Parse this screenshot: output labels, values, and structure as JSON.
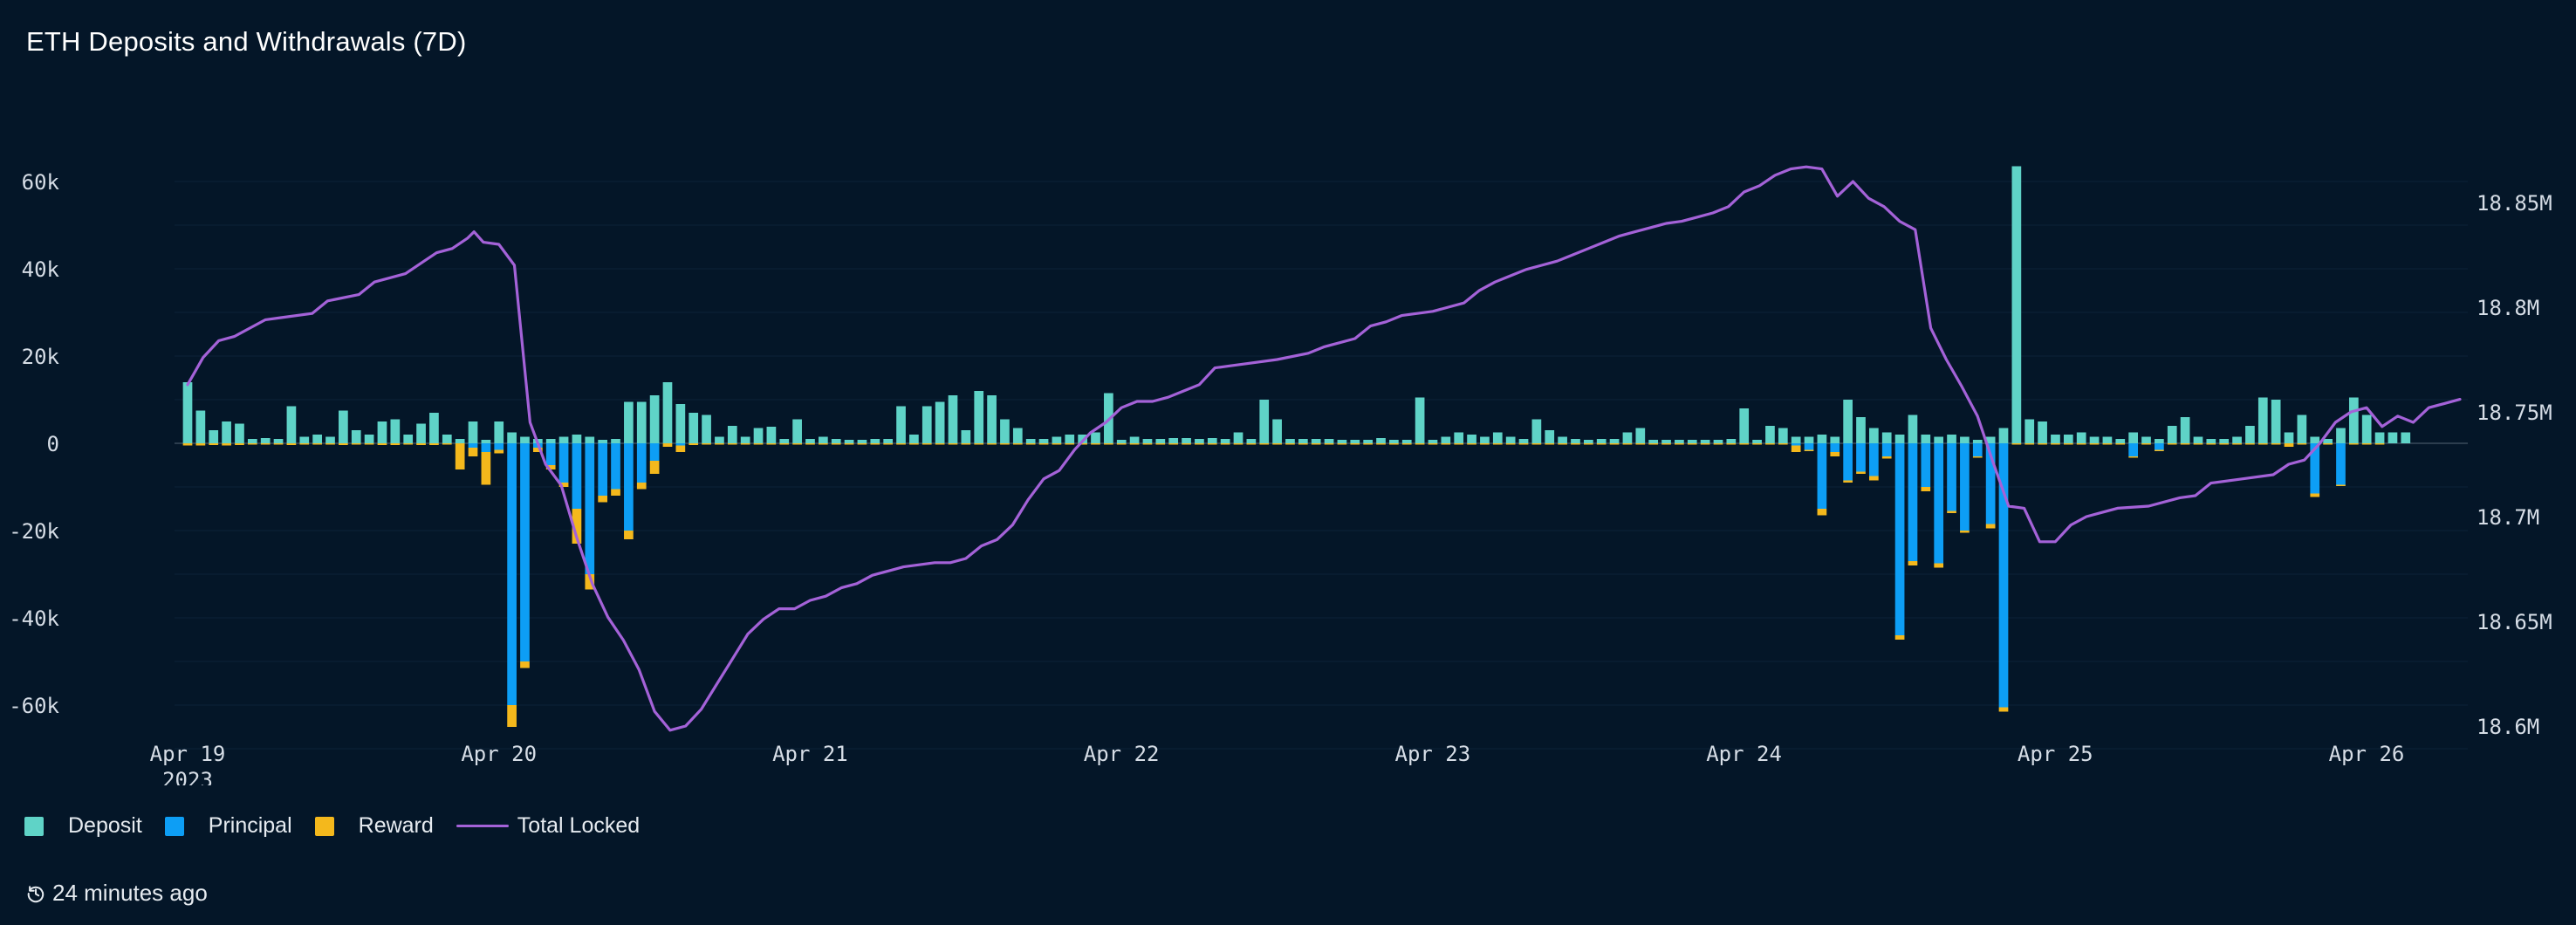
{
  "title": "ETH Deposits and Withdrawals (7D)",
  "updated": "24 minutes ago",
  "legend": {
    "deposit": "Deposit",
    "principal": "Principal",
    "reward": "Reward",
    "total_locked": "Total Locked"
  },
  "colors": {
    "deposit": "#5fd3c7",
    "principal": "#0d9ef5",
    "reward": "#f4b81c",
    "total_locked": "#a462d8",
    "background": "#041628"
  },
  "chart_data": {
    "type": "bar",
    "title": "ETH Deposits and Withdrawals (7D)",
    "x_ticks": [
      {
        "label": "Apr 19",
        "sub": "2023",
        "day": 0
      },
      {
        "label": "Apr 20",
        "sub": "",
        "day": 1
      },
      {
        "label": "Apr 21",
        "sub": "",
        "day": 2
      },
      {
        "label": "Apr 22",
        "sub": "",
        "day": 3
      },
      {
        "label": "Apr 23",
        "sub": "",
        "day": 4
      },
      {
        "label": "Apr 24",
        "sub": "",
        "day": 5
      },
      {
        "label": "Apr 25",
        "sub": "",
        "day": 6
      },
      {
        "label": "Apr 26",
        "sub": "",
        "day": 7
      }
    ],
    "x_range_days": [
      -0.1,
      7.5
    ],
    "bar_start_day": 0,
    "bar_step_days": 0.04167,
    "ylim_left": [
      -72000,
      72000
    ],
    "y_ticks_left": [
      {
        "value": 60000,
        "label": "60k"
      },
      {
        "value": 40000,
        "label": "40k"
      },
      {
        "value": 20000,
        "label": "20k"
      },
      {
        "value": 0,
        "label": "0"
      },
      {
        "value": -20000,
        "label": "-20k"
      },
      {
        "value": -40000,
        "label": "-40k"
      },
      {
        "value": -60000,
        "label": "-60k"
      }
    ],
    "ylim_right": [
      18.585,
      18.885
    ],
    "y_ticks_right": [
      {
        "value": 18.85,
        "label": "18.85M"
      },
      {
        "value": 18.8,
        "label": "18.8M"
      },
      {
        "value": 18.75,
        "label": "18.75M"
      },
      {
        "value": 18.7,
        "label": "18.7M"
      },
      {
        "value": 18.65,
        "label": "18.65M"
      },
      {
        "value": 18.6,
        "label": "18.6M"
      }
    ],
    "series": [
      {
        "name": "Deposit",
        "values": [
          14000,
          7500,
          3000,
          5000,
          4500,
          1000,
          1200,
          1000,
          8500,
          1500,
          2000,
          1500,
          7500,
          3000,
          2000,
          5000,
          5500,
          2000,
          4500,
          7000,
          2000,
          1000,
          5000,
          800,
          5000,
          2500,
          1500,
          1000,
          1000,
          1500,
          2000,
          1500,
          800,
          1000,
          9500,
          9500,
          11000,
          14000,
          9000,
          7000,
          6500,
          1500,
          4000,
          1500,
          3500,
          3800,
          1000,
          5500,
          1000,
          1500,
          1000,
          800,
          800,
          1000,
          1000,
          8500,
          2000,
          8500,
          9500,
          11000,
          3000,
          12000,
          11000,
          5500,
          3500,
          1000,
          1000,
          1500,
          2000,
          2000,
          2500,
          11500,
          800,
          1500,
          1000,
          1000,
          1200,
          1200,
          1000,
          1200,
          1000,
          2500,
          1000,
          10000,
          5500,
          1000,
          1000,
          1000,
          1000,
          800,
          800,
          800,
          1200,
          800,
          800,
          10500,
          800,
          1500,
          2500,
          2000,
          1500,
          2500,
          1500,
          1000,
          5500,
          3000,
          1500,
          1000,
          800,
          1000,
          1000,
          2500,
          3500,
          800,
          800,
          800,
          800,
          800,
          800,
          1000,
          8000,
          800,
          4000,
          3500,
          1500,
          1500,
          2000,
          1500,
          10000,
          6000,
          3500,
          2500,
          2000,
          6500,
          2000,
          1500,
          2000,
          1500,
          800,
          1500,
          3500,
          63500,
          5500,
          5000,
          2000,
          2000,
          2500,
          1500,
          1500,
          1000,
          2500,
          1500,
          1000,
          4000,
          6000,
          1500,
          1000,
          1000,
          1500,
          4000,
          10500,
          10000,
          2500,
          6500,
          1500,
          1000,
          3500,
          10500,
          6500,
          2500,
          2500,
          2500
        ]
      },
      {
        "name": "Principal",
        "values": [
          0,
          0,
          0,
          0,
          0,
          0,
          0,
          0,
          0,
          0,
          0,
          0,
          0,
          0,
          0,
          0,
          0,
          0,
          0,
          0,
          0,
          0,
          -1000,
          -2000,
          -1500,
          -60000,
          -50000,
          -1000,
          -5000,
          -9000,
          -15000,
          -30000,
          -12000,
          -10500,
          -20000,
          -9000,
          -4000,
          0,
          -500,
          0,
          0,
          0,
          0,
          0,
          0,
          0,
          0,
          0,
          0,
          0,
          0,
          0,
          0,
          0,
          0,
          0,
          0,
          0,
          0,
          0,
          0,
          0,
          0,
          0,
          0,
          0,
          0,
          0,
          0,
          0,
          0,
          0,
          0,
          0,
          0,
          0,
          0,
          0,
          0,
          0,
          0,
          0,
          0,
          0,
          0,
          0,
          0,
          0,
          0,
          0,
          0,
          0,
          0,
          0,
          0,
          0,
          0,
          0,
          0,
          0,
          0,
          0,
          0,
          0,
          0,
          0,
          0,
          0,
          0,
          0,
          0,
          0,
          0,
          0,
          0,
          0,
          0,
          0,
          0,
          0,
          0,
          0,
          0,
          0,
          -500,
          -1500,
          -15000,
          -2000,
          -8500,
          -6500,
          -7500,
          -3000,
          -44000,
          -27000,
          -10000,
          -27500,
          -15500,
          -20000,
          -3000,
          -18500,
          -60500,
          0,
          0,
          0,
          0,
          0,
          0,
          0,
          0,
          0,
          -3000,
          0,
          -1500,
          0,
          0,
          0,
          0,
          0,
          0,
          0,
          0,
          0,
          0,
          0,
          -11500,
          0,
          -9500,
          0,
          0,
          0,
          0,
          0
        ]
      },
      {
        "name": "Reward",
        "values": [
          -500,
          -500,
          -400,
          -500,
          -400,
          -300,
          -300,
          -300,
          -400,
          -300,
          -300,
          -300,
          -400,
          -300,
          -300,
          -400,
          -400,
          -300,
          -400,
          -400,
          -300,
          -6000,
          -2000,
          -7500,
          -800,
          -5000,
          -1500,
          -1000,
          -1000,
          -1000,
          -8000,
          -3500,
          -1500,
          -1500,
          -2000,
          -1500,
          -3000,
          -800,
          -1500,
          -400,
          -300,
          -300,
          -300,
          -300,
          -300,
          -300,
          -300,
          -300,
          -300,
          -300,
          -300,
          -300,
          -300,
          -300,
          -300,
          -300,
          -300,
          -300,
          -300,
          -300,
          -300,
          -300,
          -300,
          -300,
          -300,
          -300,
          -300,
          -300,
          -300,
          -300,
          -300,
          -300,
          -300,
          -300,
          -300,
          -300,
          -300,
          -300,
          -300,
          -300,
          -300,
          -300,
          -300,
          -300,
          -300,
          -300,
          -300,
          -300,
          -300,
          -300,
          -300,
          -300,
          -300,
          -300,
          -300,
          -300,
          -300,
          -300,
          -300,
          -300,
          -300,
          -300,
          -300,
          -300,
          -300,
          -300,
          -300,
          -300,
          -300,
          -300,
          -300,
          -300,
          -300,
          -300,
          -300,
          -300,
          -300,
          -300,
          -300,
          -300,
          -300,
          -300,
          -300,
          -300,
          -1500,
          -300,
          -1500,
          -1000,
          -500,
          -500,
          -1000,
          -500,
          -1000,
          -1000,
          -1000,
          -1000,
          -500,
          -500,
          -300,
          -1000,
          -1000,
          -300,
          -300,
          -300,
          -300,
          -300,
          -300,
          -300,
          -300,
          -300,
          -300,
          -300,
          -300,
          -300,
          -300,
          -300,
          -300,
          -300,
          -300,
          -300,
          -300,
          -300,
          -800,
          -300,
          -800,
          -300,
          -300,
          -300,
          -300,
          -300
        ]
      },
      {
        "name": "Total Locked",
        "axis": "right",
        "points": [
          [
            0.0,
            18.763
          ],
          [
            0.05,
            18.776
          ],
          [
            0.1,
            18.784
          ],
          [
            0.15,
            18.786
          ],
          [
            0.2,
            18.79
          ],
          [
            0.25,
            18.794
          ],
          [
            0.3,
            18.795
          ],
          [
            0.4,
            18.797
          ],
          [
            0.45,
            18.803
          ],
          [
            0.55,
            18.806
          ],
          [
            0.6,
            18.812
          ],
          [
            0.7,
            18.816
          ],
          [
            0.75,
            18.821
          ],
          [
            0.8,
            18.826
          ],
          [
            0.85,
            18.828
          ],
          [
            0.9,
            18.833
          ],
          [
            0.92,
            18.836
          ],
          [
            0.95,
            18.831
          ],
          [
            1.0,
            18.83
          ],
          [
            1.05,
            18.82
          ],
          [
            1.1,
            18.745
          ],
          [
            1.15,
            18.725
          ],
          [
            1.2,
            18.715
          ],
          [
            1.25,
            18.69
          ],
          [
            1.3,
            18.668
          ],
          [
            1.35,
            18.652
          ],
          [
            1.4,
            18.641
          ],
          [
            1.45,
            18.627
          ],
          [
            1.5,
            18.607
          ],
          [
            1.55,
            18.598
          ],
          [
            1.6,
            18.6
          ],
          [
            1.65,
            18.608
          ],
          [
            1.7,
            18.62
          ],
          [
            1.75,
            18.632
          ],
          [
            1.8,
            18.644
          ],
          [
            1.85,
            18.651
          ],
          [
            1.9,
            18.656
          ],
          [
            1.95,
            18.656
          ],
          [
            2.0,
            18.66
          ],
          [
            2.05,
            18.662
          ],
          [
            2.1,
            18.666
          ],
          [
            2.15,
            18.668
          ],
          [
            2.2,
            18.672
          ],
          [
            2.25,
            18.674
          ],
          [
            2.3,
            18.676
          ],
          [
            2.35,
            18.677
          ],
          [
            2.4,
            18.678
          ],
          [
            2.45,
            18.678
          ],
          [
            2.5,
            18.68
          ],
          [
            2.55,
            18.686
          ],
          [
            2.6,
            18.689
          ],
          [
            2.65,
            18.696
          ],
          [
            2.7,
            18.708
          ],
          [
            2.75,
            18.718
          ],
          [
            2.8,
            18.722
          ],
          [
            2.85,
            18.732
          ],
          [
            2.9,
            18.74
          ],
          [
            2.95,
            18.745
          ],
          [
            3.0,
            18.752
          ],
          [
            3.05,
            18.755
          ],
          [
            3.1,
            18.755
          ],
          [
            3.15,
            18.757
          ],
          [
            3.2,
            18.76
          ],
          [
            3.25,
            18.763
          ],
          [
            3.3,
            18.771
          ],
          [
            3.35,
            18.772
          ],
          [
            3.4,
            18.773
          ],
          [
            3.5,
            18.775
          ],
          [
            3.6,
            18.778
          ],
          [
            3.65,
            18.781
          ],
          [
            3.7,
            18.783
          ],
          [
            3.75,
            18.785
          ],
          [
            3.8,
            18.791
          ],
          [
            3.85,
            18.793
          ],
          [
            3.9,
            18.796
          ],
          [
            3.95,
            18.797
          ],
          [
            4.0,
            18.798
          ],
          [
            4.05,
            18.8
          ],
          [
            4.1,
            18.802
          ],
          [
            4.15,
            18.808
          ],
          [
            4.2,
            18.812
          ],
          [
            4.25,
            18.815
          ],
          [
            4.3,
            18.818
          ],
          [
            4.35,
            18.82
          ],
          [
            4.4,
            18.822
          ],
          [
            4.45,
            18.825
          ],
          [
            4.5,
            18.828
          ],
          [
            4.55,
            18.831
          ],
          [
            4.6,
            18.834
          ],
          [
            4.65,
            18.836
          ],
          [
            4.7,
            18.838
          ],
          [
            4.75,
            18.84
          ],
          [
            4.8,
            18.841
          ],
          [
            4.85,
            18.843
          ],
          [
            4.9,
            18.845
          ],
          [
            4.95,
            18.848
          ],
          [
            5.0,
            18.855
          ],
          [
            5.05,
            18.858
          ],
          [
            5.1,
            18.863
          ],
          [
            5.15,
            18.866
          ],
          [
            5.2,
            18.867
          ],
          [
            5.25,
            18.866
          ],
          [
            5.3,
            18.853
          ],
          [
            5.35,
            18.86
          ],
          [
            5.4,
            18.852
          ],
          [
            5.45,
            18.848
          ],
          [
            5.5,
            18.841
          ],
          [
            5.55,
            18.837
          ],
          [
            5.6,
            18.79
          ],
          [
            5.65,
            18.775
          ],
          [
            5.7,
            18.762
          ],
          [
            5.75,
            18.748
          ],
          [
            5.8,
            18.726
          ],
          [
            5.85,
            18.705
          ],
          [
            5.9,
            18.704
          ],
          [
            5.95,
            18.688
          ],
          [
            6.0,
            18.688
          ],
          [
            6.05,
            18.696
          ],
          [
            6.1,
            18.7
          ],
          [
            6.15,
            18.702
          ],
          [
            6.2,
            18.704
          ],
          [
            6.3,
            18.705
          ],
          [
            6.4,
            18.709
          ],
          [
            6.45,
            18.71
          ],
          [
            6.5,
            18.716
          ],
          [
            6.6,
            18.718
          ],
          [
            6.7,
            18.72
          ],
          [
            6.75,
            18.725
          ],
          [
            6.8,
            18.727
          ],
          [
            6.85,
            18.735
          ],
          [
            6.9,
            18.745
          ],
          [
            6.95,
            18.75
          ],
          [
            7.0,
            18.752
          ],
          [
            7.05,
            18.743
          ],
          [
            7.1,
            18.748
          ],
          [
            7.15,
            18.745
          ],
          [
            7.2,
            18.752
          ],
          [
            7.25,
            18.754
          ],
          [
            7.3,
            18.756
          ]
        ]
      }
    ],
    "legend_position": "bottom-left",
    "grid": true
  }
}
